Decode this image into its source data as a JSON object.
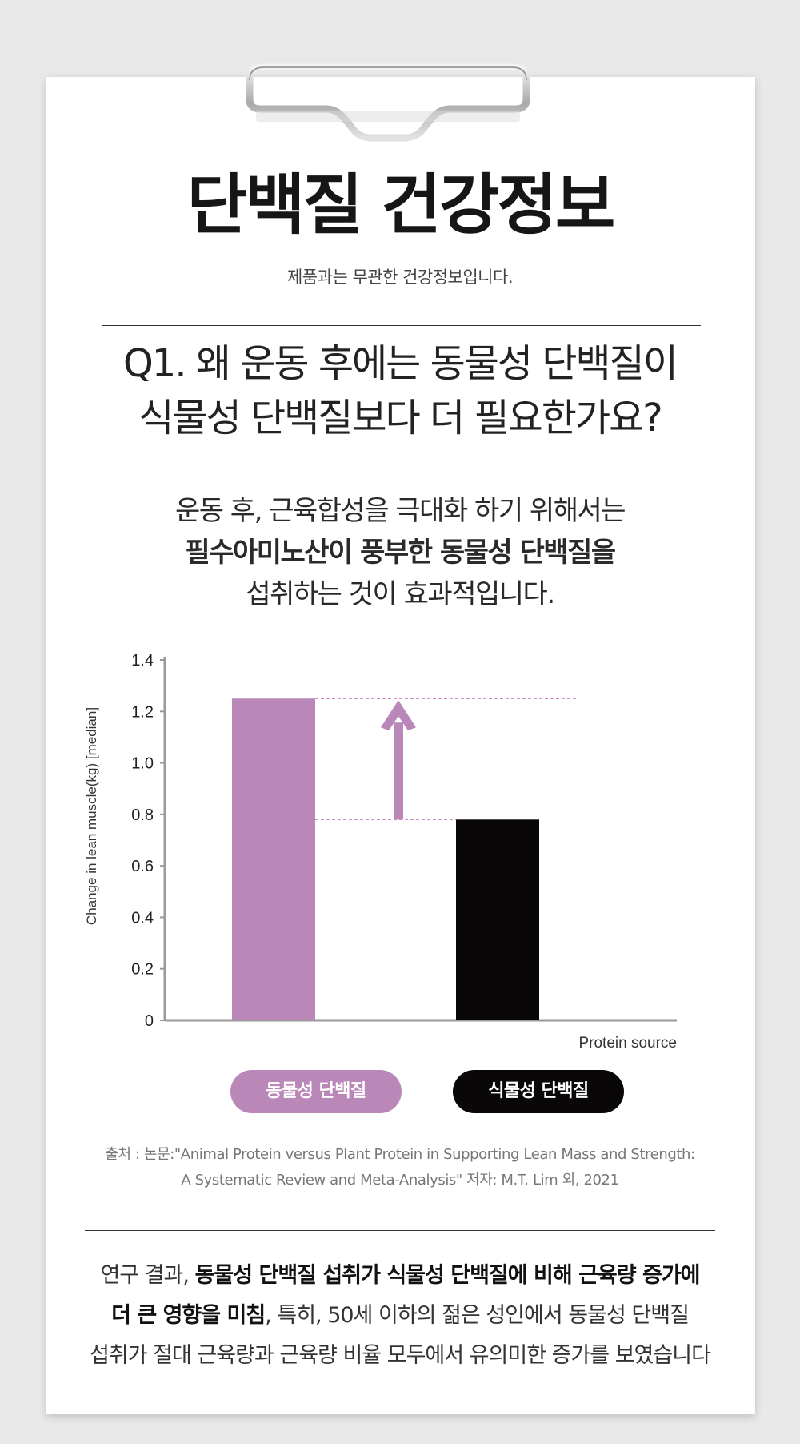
{
  "header": {
    "title": "단백질 건강정보",
    "subtitle": "제품과는 무관한 건강정보입니다."
  },
  "question": {
    "line1": "Q1. 왜 운동 후에는 동물성 단백질이",
    "line2": "식물성 단백질보다 더 필요한가요?"
  },
  "answer": {
    "line1": "운동 후, 근육합성을 극대화 하기 위해서는",
    "line2": "필수아미노산이 풍부한 동물성 단백질을",
    "line3": "섭취하는 것이 효과적입니다."
  },
  "chart_data": {
    "type": "bar",
    "categories": [
      "동물성 단백질",
      "식물성 단백질"
    ],
    "values": [
      1.25,
      0.78
    ],
    "colors": [
      "#b988b9",
      "#0a0708"
    ],
    "ylabel": "Change in lean muscle(kg) [median]",
    "xlabel": "Protein source",
    "ylim": [
      0,
      1.4
    ],
    "yticks": [
      "0",
      "0.2",
      "0.4",
      "0.6",
      "0.8",
      "1.0",
      "1.2",
      "1.4"
    ],
    "annotation": "up-arrow indicating increase from plant to animal protein",
    "legend": [
      "동물성 단백질",
      "식물성 단백질"
    ]
  },
  "legend": {
    "animal_label": "동물성 단백질",
    "plant_label": "식물성 단백질"
  },
  "source": {
    "line1": "출처 : 논문:\"Animal Protein versus Plant Protein in Supporting Lean Mass and Strength:",
    "line2": "A Systematic Review and Meta-Analysis\" 저자: M.T. Lim 외, 2021"
  },
  "conclusion": {
    "l1_normal": "연구 결과, ",
    "l1_bold": "동물성 단백질 섭취가 식물성 단백질에 비해 근육량 증가에",
    "l2_bold": "더 큰 영향을 미침",
    "l2_normal": ", 특히, 50세 이하의 젊은 성인에서 동물성 단백질",
    "l3_normal": "섭취가 절대 근육량과 근육량 비율 모두에서 유의미한 증가를 보였습니다"
  },
  "colors": {
    "accent": "#b988b9",
    "dark": "#0a0708"
  }
}
